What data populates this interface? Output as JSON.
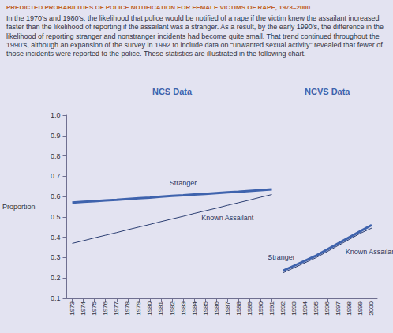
{
  "chart_data": {
    "type": "line",
    "title": "PREDICTED PROBABILITIES OF POLICE NOTIFICATION FOR FEMALE VICTIMS OF RAPE, 1973–2000",
    "subtitle": "In the 1970’s and 1980’s, the likelihood that police would be notified of a rape if the victim knew the assailant increased faster than the likelihood of reporting if the assailant was a stranger. As a result, by the early 1990’s, the difference in the likelihood of reporting stranger and nonstranger incidents had become quite small. That trend continued throughout the 1990’s, although an expansion of the survey in 1992 to include data on “unwanted sexual activity” revealed that fewer of those incidents were reported to the police. These statistics are illustrated in the following chart.",
    "y_label": "Proportion",
    "annotations": [
      "NCS Data",
      "NCVS Data"
    ],
    "categories": [
      "1973",
      "1974",
      "1975",
      "1976",
      "1977",
      "1978",
      "1979",
      "1980",
      "1981",
      "1982",
      "1983",
      "1984",
      "1985",
      "1986",
      "1987",
      "1988",
      "1989",
      "1990",
      "1991",
      "1992",
      "1993",
      "1994",
      "1995",
      "1996",
      "1997",
      "1998",
      "1999",
      "2000"
    ],
    "series": [
      {
        "name": "Stranger",
        "color": "#3f63ad",
        "line_style": "thick",
        "values": [
          0.57,
          0.574,
          0.577,
          0.581,
          0.584,
          0.588,
          0.592,
          0.595,
          0.599,
          0.603,
          0.606,
          0.61,
          0.613,
          0.617,
          0.621,
          0.624,
          0.628,
          0.631,
          0.635,
          null,
          null,
          null,
          null,
          null,
          null,
          null,
          null,
          null
        ]
      },
      {
        "name": "Known Assailant",
        "color": "#2c3f73",
        "line_style": "thin",
        "values": [
          0.37,
          0.383,
          0.397,
          0.41,
          0.423,
          0.437,
          0.45,
          0.463,
          0.477,
          0.49,
          0.503,
          0.517,
          0.53,
          0.543,
          0.557,
          0.57,
          0.583,
          0.597,
          0.61,
          null,
          null,
          null,
          null,
          null,
          null,
          null,
          null,
          null
        ]
      },
      {
        "name": "Stranger",
        "color": "#3f63ad",
        "line_style": "thick",
        "values": [
          null,
          null,
          null,
          null,
          null,
          null,
          null,
          null,
          null,
          null,
          null,
          null,
          null,
          null,
          null,
          null,
          null,
          null,
          null,
          0.235,
          0.26,
          0.285,
          0.31,
          0.34,
          0.37,
          0.4,
          0.43,
          0.46
        ]
      },
      {
        "name": "Known Assailant",
        "color": "#2c3f73",
        "line_style": "thin",
        "values": [
          null,
          null,
          null,
          null,
          null,
          null,
          null,
          null,
          null,
          null,
          null,
          null,
          null,
          null,
          null,
          null,
          null,
          null,
          null,
          0.225,
          0.25,
          0.275,
          0.3,
          0.33,
          0.36,
          0.39,
          0.42,
          0.445
        ]
      }
    ],
    "ylim": [
      0.1,
      1
    ],
    "yticks": [
      0.1,
      0.2,
      0.3,
      0.4,
      0.5,
      0.6,
      0.7,
      0.8,
      0.9,
      {
        "value": 1,
        "label": "1.0"
      }
    ],
    "grid": false
  }
}
